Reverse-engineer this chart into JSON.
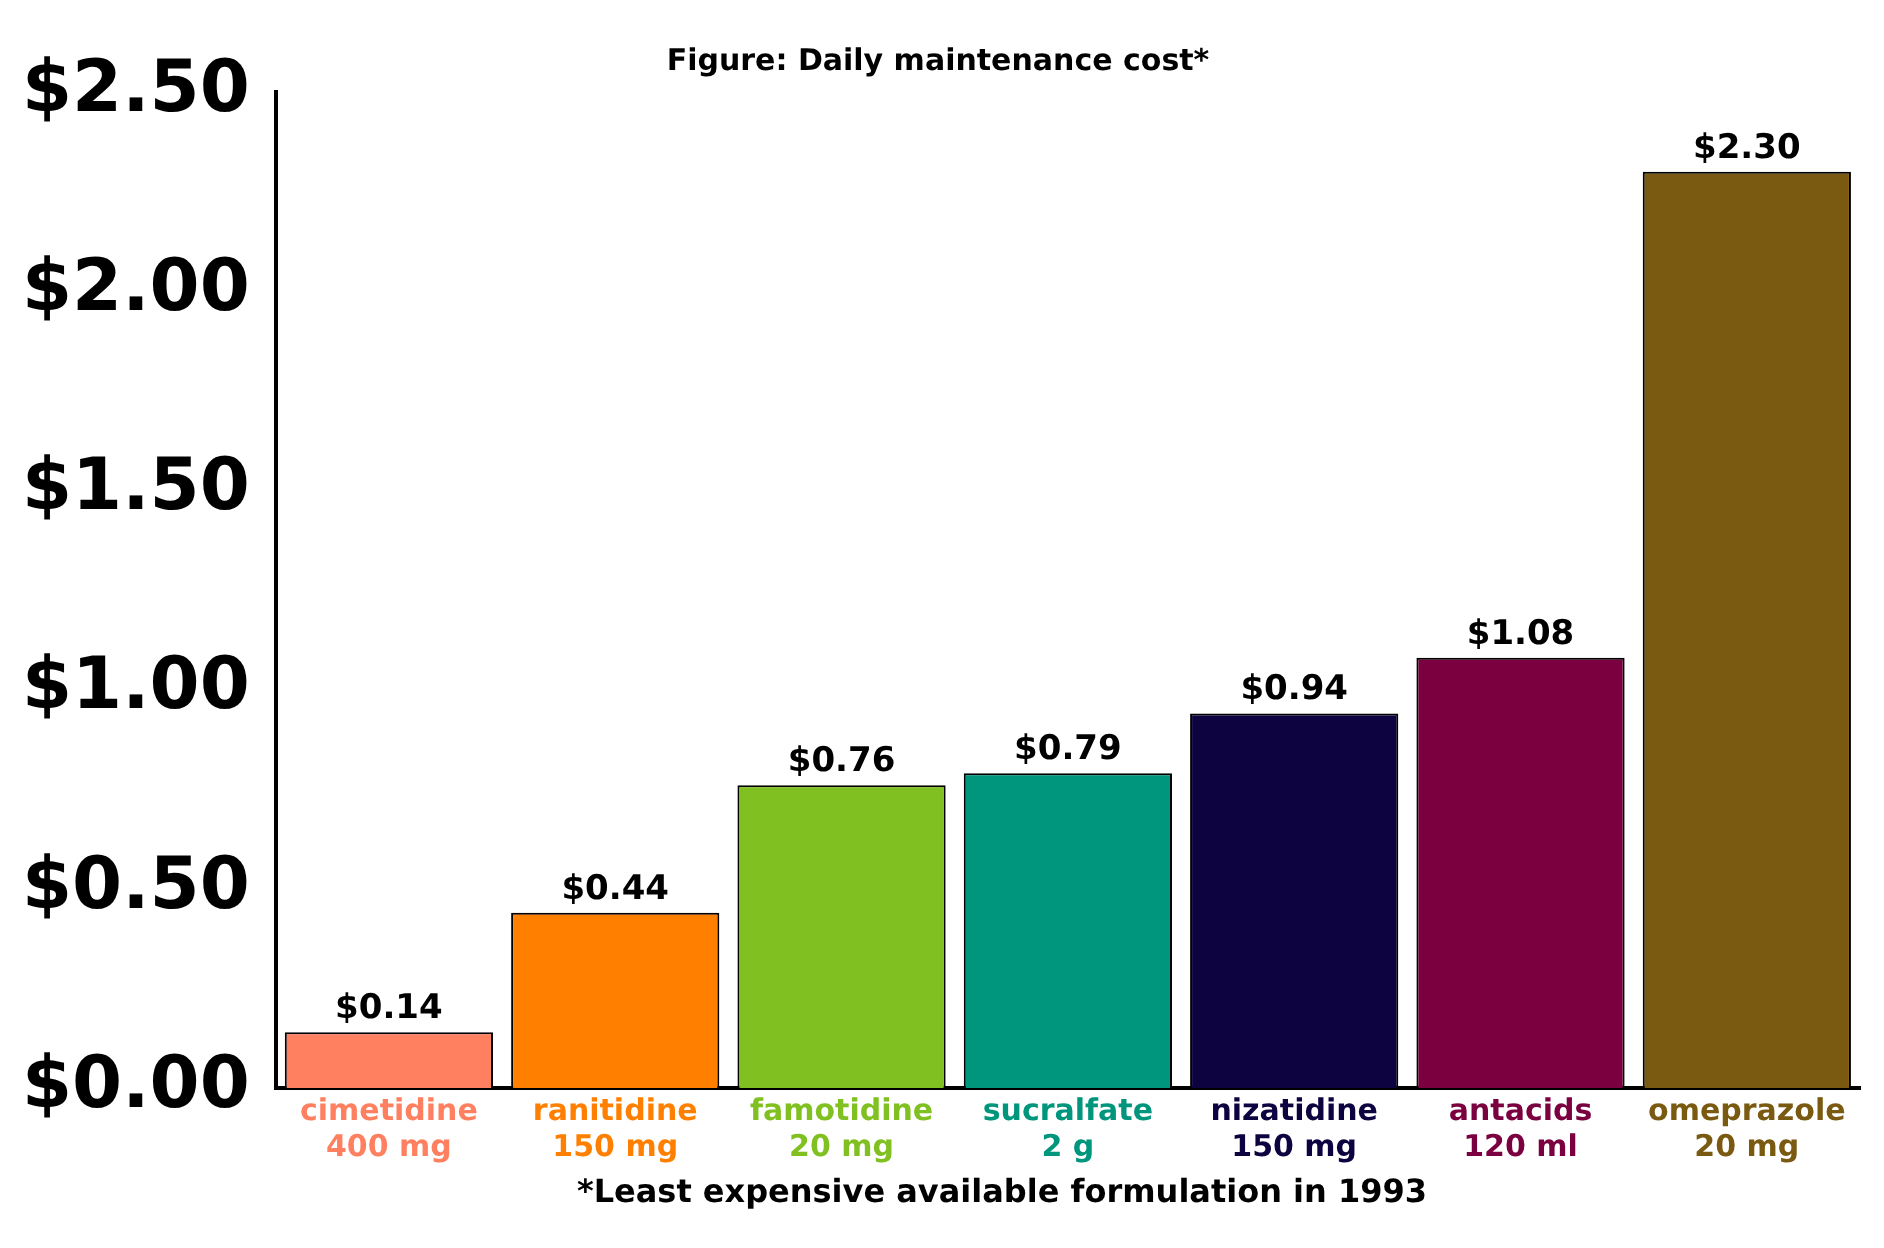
{
  "chart_data": {
    "type": "bar",
    "title": "Figure: Daily maintenance cost*",
    "categories": [
      "cimetidine\n400 mg",
      "ranitidine\n150 mg",
      "famotidine\n20 mg",
      "sucralfate\n2 g",
      "nizatidine\n150 mg",
      "antacids\n120 ml",
      "omeprazole\n20 mg"
    ],
    "values": [
      0.14,
      0.44,
      0.76,
      0.79,
      0.94,
      1.08,
      2.3
    ],
    "colors": [
      "#ff8060",
      "#ff8000",
      "#80c020",
      "#00957d",
      "#0c0340",
      "#7a0040",
      "#7a5a10"
    ],
    "value_labels": [
      "$0.14",
      "$0.44",
      "$0.76",
      "$0.79",
      "$0.94",
      "$1.08",
      "$2.30"
    ],
    "ylim": [
      0,
      2.5
    ],
    "yticks": [
      {
        "value": 0,
        "label": "$0.00"
      },
      {
        "value": 0.5,
        "label": "$0.50"
      },
      {
        "value": 1,
        "label": "$1.00"
      },
      {
        "value": 1.5,
        "label": "$1.50"
      },
      {
        "value": 2,
        "label": "$2.00"
      },
      {
        "value": 2.5,
        "label": "$2.50"
      }
    ],
    "grid": false,
    "legend": false,
    "annotations": [
      "*Least expensive available formulation in 1993"
    ]
  }
}
